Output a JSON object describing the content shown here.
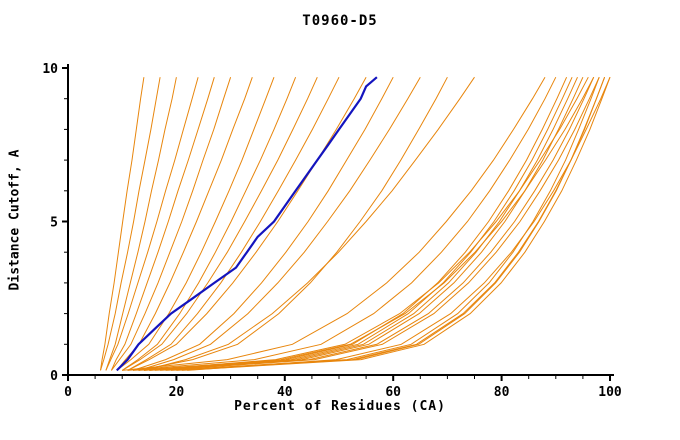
{
  "chart_data": {
    "type": "line",
    "title": "T0960-D5",
    "xlabel": "Percent of Residues (CA)",
    "ylabel": "Distance Cutoff, A",
    "xlim": [
      0,
      100
    ],
    "ylim": [
      0,
      10
    ],
    "x_ticks": [
      0,
      20,
      40,
      60,
      80,
      100
    ],
    "y_ticks": [
      0,
      5,
      10
    ],
    "x_minor_tick_step": 5,
    "y_minor_tick_step": 1,
    "grid": false,
    "legend": null,
    "orange_color": "#e8860d",
    "highlight_color": "#1414be",
    "axis_color": "#000000",
    "y_levels": [
      0.15,
      0.5,
      1,
      2,
      3,
      4,
      5,
      6,
      7,
      8,
      9,
      9.7
    ],
    "orange_curves_x": [
      [
        6,
        6.3,
        6.8,
        7.6,
        8.5,
        9.3,
        10.1,
        10.9,
        11.8,
        12.6,
        13.4,
        14
      ],
      [
        6,
        6.6,
        7.4,
        8.7,
        9.8,
        11.0,
        12.1,
        13.1,
        14.2,
        15.3,
        16.3,
        17
      ],
      [
        7,
        7.7,
        8.7,
        10.1,
        11.5,
        12.9,
        14.2,
        15.4,
        16.7,
        17.9,
        19.2,
        20
      ],
      [
        7,
        7.9,
        9.2,
        11.1,
        12.9,
        14.7,
        16.4,
        18.0,
        19.7,
        21.3,
        22.9,
        24
      ],
      [
        8,
        8.9,
        10.5,
        12.6,
        14.6,
        16.6,
        18.5,
        20.3,
        22.2,
        24.0,
        25.8,
        27
      ],
      [
        8,
        9.5,
        11.6,
        14.2,
        16.6,
        18.8,
        21.0,
        23.0,
        24.9,
        26.9,
        28.7,
        30
      ],
      [
        9,
        10.6,
        13.1,
        16.1,
        18.8,
        21.3,
        23.7,
        26.0,
        28.3,
        30.4,
        32.6,
        34
      ],
      [
        9,
        11.6,
        14.9,
        18.6,
        21.8,
        24.6,
        27.2,
        29.7,
        32.1,
        34.3,
        36.5,
        38
      ],
      [
        10,
        12.9,
        16.5,
        20.6,
        24.1,
        27.2,
        30.1,
        32.8,
        35.5,
        38.0,
        40.4,
        42
      ],
      [
        10,
        13.3,
        17.3,
        21.9,
        25.8,
        29.4,
        32.6,
        35.7,
        38.7,
        41.5,
        44.2,
        46
      ],
      [
        11,
        14.5,
        19.0,
        23.9,
        28.2,
        32.0,
        35.5,
        38.8,
        42.0,
        45.1,
        48.0,
        50
      ],
      [
        11,
        15.0,
        20.0,
        25.6,
        30.4,
        34.7,
        38.7,
        42.4,
        46.0,
        49.5,
        52.8,
        55
      ],
      [
        12,
        18.0,
        24.3,
        30.6,
        35.7,
        40.2,
        44.3,
        48.0,
        51.4,
        54.8,
        57.9,
        60
      ],
      [
        13,
        19.5,
        26.3,
        33.2,
        38.7,
        43.6,
        47.9,
        52.0,
        55.7,
        59.3,
        62.7,
        65
      ],
      [
        13,
        23.0,
        31.3,
        38.9,
        44.7,
        49.6,
        53.9,
        57.9,
        61.4,
        64.7,
        67.9,
        70
      ],
      [
        14,
        21.7,
        29.6,
        37.7,
        44.2,
        49.9,
        55.0,
        59.8,
        64.1,
        68.3,
        72.3,
        75
      ],
      [
        10,
        29.4,
        41.4,
        51.5,
        58.8,
        64.8,
        69.8,
        74.4,
        78.5,
        82.2,
        85.7,
        88
      ],
      [
        11,
        34.4,
        46.7,
        56.4,
        63.4,
        68.9,
        73.7,
        77.8,
        81.5,
        84.9,
        88.0,
        90
      ],
      [
        12,
        40.2,
        52.5,
        61.8,
        68.2,
        73.3,
        77.6,
        81.3,
        84.6,
        87.5,
        90.2,
        92
      ],
      [
        13,
        41.2,
        53.5,
        62.8,
        69.2,
        74.3,
        78.6,
        82.3,
        85.6,
        88.5,
        91.2,
        93
      ],
      [
        14,
        42.2,
        54.5,
        63.8,
        70.2,
        75.3,
        79.6,
        83.3,
        86.6,
        89.5,
        92.2,
        94
      ],
      [
        15,
        43.2,
        55.5,
        64.8,
        71.2,
        76.3,
        80.6,
        84.3,
        87.6,
        90.5,
        93.2,
        95
      ],
      [
        14,
        38.3,
        51.1,
        61.2,
        68.4,
        74.1,
        79.0,
        83.3,
        87.1,
        90.7,
        93.9,
        96
      ],
      [
        15,
        39.3,
        52.1,
        62.2,
        69.4,
        75.1,
        80.0,
        84.3,
        88.1,
        91.7,
        94.9,
        97
      ],
      [
        16,
        44.5,
        57.0,
        66.5,
        72.9,
        78.0,
        82.4,
        86.1,
        89.5,
        92.5,
        95.2,
        97
      ],
      [
        17,
        45.5,
        58.0,
        67.5,
        73.9,
        79.0,
        83.4,
        87.1,
        90.5,
        93.5,
        96.2,
        98
      ],
      [
        18,
        51.5,
        63.3,
        71.9,
        77.7,
        82.1,
        85.8,
        89.0,
        91.8,
        94.2,
        96.5,
        98
      ],
      [
        19,
        52.5,
        64.3,
        72.9,
        78.7,
        83.1,
        86.8,
        90.0,
        92.8,
        95.2,
        97.5,
        99
      ],
      [
        20,
        53.1,
        64.7,
        73.2,
        78.9,
        83.3,
        86.9,
        90.1,
        92.8,
        95.3,
        97.5,
        99
      ],
      [
        21,
        54.1,
        65.7,
        74.2,
        79.9,
        84.3,
        87.9,
        91.1,
        93.8,
        96.3,
        98.5,
        100
      ],
      [
        22,
        49.5,
        61.5,
        70.6,
        76.8,
        81.8,
        86.0,
        89.6,
        92.8,
        95.6,
        98.3,
        100
      ]
    ],
    "highlight_curve": [
      [
        9,
        0.15
      ],
      [
        11,
        0.5
      ],
      [
        13,
        1
      ],
      [
        16,
        1.5
      ],
      [
        19,
        2
      ],
      [
        23,
        2.5
      ],
      [
        27,
        3
      ],
      [
        31,
        3.5
      ],
      [
        33,
        4
      ],
      [
        35,
        4.5
      ],
      [
        38,
        5
      ],
      [
        40,
        5.5
      ],
      [
        42,
        6
      ],
      [
        44,
        6.5
      ],
      [
        46,
        7
      ],
      [
        48,
        7.5
      ],
      [
        50,
        8
      ],
      [
        52,
        8.5
      ],
      [
        54,
        9
      ],
      [
        55,
        9.4
      ],
      [
        57,
        9.7
      ]
    ]
  }
}
